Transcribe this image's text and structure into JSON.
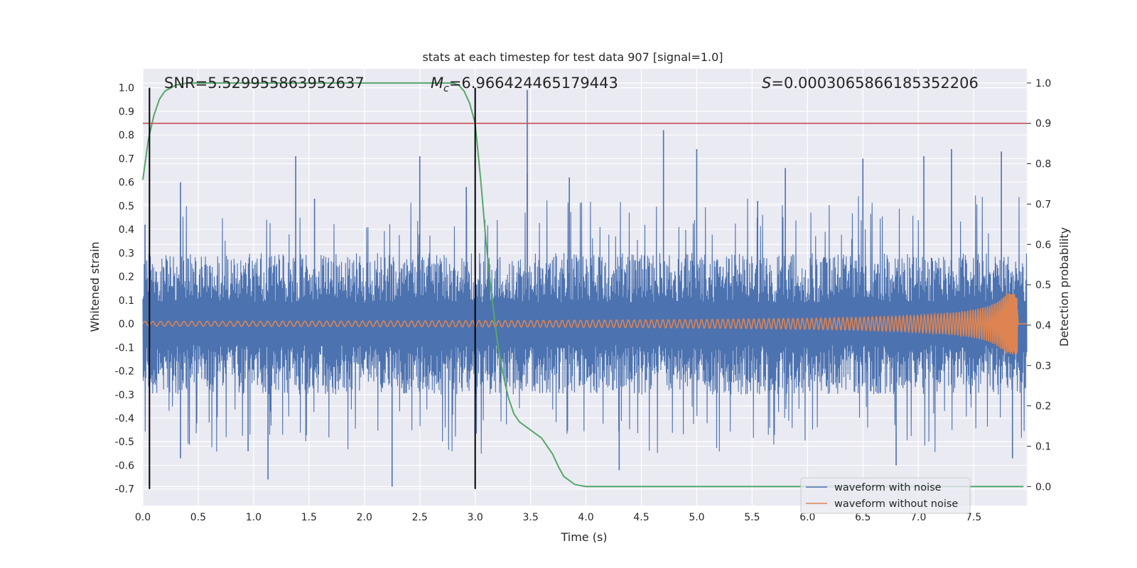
{
  "chart_data": {
    "type": "line",
    "title": "stats at each timestep for test data 907 [signal=1.0]",
    "xlabel": "Time (s)",
    "ylabel": "Whitened strain",
    "y2label": "Detection probability",
    "xlim": [
      0.0,
      7.98
    ],
    "ylim": [
      -0.77,
      1.08
    ],
    "y2lim": [
      -0.047,
      1.035
    ],
    "xticks": [
      0.0,
      0.5,
      1.0,
      1.5,
      2.0,
      2.5,
      3.0,
      3.5,
      4.0,
      4.5,
      5.0,
      5.5,
      6.0,
      6.5,
      7.0,
      7.5
    ],
    "yticks": [
      -0.7,
      -0.6,
      -0.5,
      -0.4,
      -0.3,
      -0.2,
      -0.1,
      0.0,
      0.1,
      0.2,
      0.3,
      0.4,
      0.5,
      0.6,
      0.7,
      0.8,
      0.9,
      1.0
    ],
    "y2ticks": [
      0.0,
      0.1,
      0.2,
      0.3,
      0.4,
      0.5,
      0.6,
      0.7,
      0.8,
      0.9,
      1.0
    ],
    "grid": true,
    "annotations": [
      {
        "text": "SNR=5.529955863952637"
      },
      {
        "text": "=6.966424465179443",
        "math_prefix": "M",
        "math_sub": "c"
      },
      {
        "text": "=0.0003065866185352206",
        "math_prefix": "S"
      }
    ],
    "vertical_lines_x": [
      0.06,
      3.0
    ],
    "threshold_y2": 0.9,
    "noisy_waveform": {
      "name": "waveform with noise",
      "color": "#4c72b0",
      "typical_amplitude": 0.3,
      "peaks": [
        {
          "x": 0.02,
          "y": 0.42
        },
        {
          "x": 0.34,
          "y": 0.6
        },
        {
          "x": 0.34,
          "y": -0.57
        },
        {
          "x": 0.95,
          "y": -0.54
        },
        {
          "x": 1.13,
          "y": -0.66
        },
        {
          "x": 1.38,
          "y": 0.71
        },
        {
          "x": 1.55,
          "y": 0.53
        },
        {
          "x": 2.25,
          "y": -0.69
        },
        {
          "x": 2.5,
          "y": 0.71
        },
        {
          "x": 2.92,
          "y": 0.58
        },
        {
          "x": 3.47,
          "y": 0.99
        },
        {
          "x": 3.47,
          "y": 0.64
        },
        {
          "x": 3.85,
          "y": 0.62
        },
        {
          "x": 4.3,
          "y": -0.62
        },
        {
          "x": 4.7,
          "y": 0.82
        },
        {
          "x": 5.0,
          "y": 0.74
        },
        {
          "x": 5.55,
          "y": 0.52
        },
        {
          "x": 5.8,
          "y": 0.66
        },
        {
          "x": 6.5,
          "y": 0.7
        },
        {
          "x": 6.8,
          "y": -0.6
        },
        {
          "x": 7.05,
          "y": 0.71
        },
        {
          "x": 7.3,
          "y": 0.74
        },
        {
          "x": 7.75,
          "y": 0.73
        },
        {
          "x": 7.85,
          "y": -0.57
        }
      ]
    },
    "clean_waveform": {
      "name": "waveform without noise",
      "color": "#dd8452",
      "start_amplitude": 0.01,
      "max_amplitude": 0.13,
      "merger_time": 7.9
    },
    "detection_probability": {
      "color": "#55a868",
      "x": [
        0.0,
        0.05,
        0.1,
        0.15,
        0.2,
        0.3,
        0.4,
        0.6,
        1.0,
        2.0,
        2.7,
        2.8,
        2.85,
        2.9,
        2.95,
        3.0,
        3.05,
        3.1,
        3.15,
        3.2,
        3.25,
        3.3,
        3.35,
        3.4,
        3.5,
        3.6,
        3.7,
        3.75,
        3.8,
        3.9,
        4.0,
        5.0,
        6.0,
        7.0,
        7.95
      ],
      "y": [
        0.76,
        0.86,
        0.92,
        0.96,
        0.98,
        0.995,
        1.0,
        1.0,
        1.0,
        1.0,
        1.0,
        1.0,
        0.995,
        0.98,
        0.95,
        0.9,
        0.76,
        0.6,
        0.47,
        0.36,
        0.28,
        0.22,
        0.18,
        0.16,
        0.14,
        0.12,
        0.08,
        0.05,
        0.025,
        0.005,
        0.0,
        0.0,
        0.0,
        0.0,
        0.0
      ]
    },
    "legend": {
      "position": "lower right",
      "entries": [
        "waveform with noise",
        "waveform without noise"
      ]
    }
  }
}
